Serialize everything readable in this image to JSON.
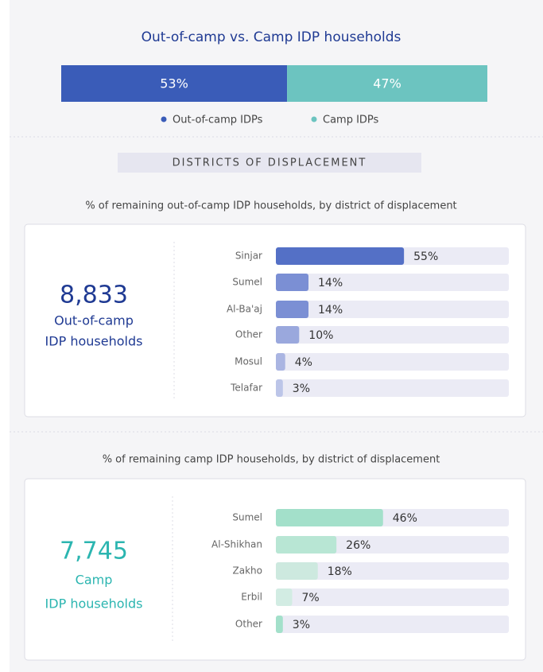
{
  "split": {
    "title": "Out-of-camp vs. Camp IDP households",
    "segments": [
      {
        "name": "Out-of-camp IDPs",
        "value": 53,
        "value_label": "53%",
        "color": "#3a5cb8"
      },
      {
        "name": "Camp IDPs",
        "value": 47,
        "value_label": "47%",
        "color": "#6cc4c0"
      }
    ]
  },
  "section_title": "DISTRICTS OF DISPLACEMENT",
  "panels": [
    {
      "subtitle": "% of remaining out-of-camp IDP households, by district of displacement",
      "total": "8,833",
      "total_lines": [
        "Out-of-camp",
        "IDP households"
      ],
      "total_color": "#1f3a93",
      "categories": [
        "Sinjar",
        "Sumel",
        "Al-Ba'aj",
        "Other",
        "Mosul",
        "Telafar"
      ],
      "values": [
        55,
        14,
        14,
        10,
        4,
        3
      ],
      "value_labels": [
        "55%",
        "14%",
        "14%",
        "10%",
        "4%",
        "3%"
      ],
      "colors": [
        "#5470c6",
        "#7b8fd4",
        "#7b8fd4",
        "#9aa8dd",
        "#aab5e2",
        "#bcc5e8"
      ],
      "xlim": [
        0,
        100
      ]
    },
    {
      "subtitle": "% of remaining camp IDP households, by district of displacement",
      "total": "7,745",
      "total_lines": [
        "Camp",
        "IDP households"
      ],
      "total_color": "#2bb5b0",
      "categories": [
        "Sumel",
        "Al-Shikhan",
        "Zakho",
        "Erbil",
        "Other"
      ],
      "values": [
        46,
        26,
        18,
        7,
        3
      ],
      "value_labels": [
        "46%",
        "26%",
        "18%",
        "7%",
        "3%"
      ],
      "colors": [
        "#a3e0ca",
        "#b8e6d4",
        "#cde9df",
        "#d2ece3",
        "#a3e0ca"
      ],
      "xlim": [
        0,
        100
      ]
    }
  ]
}
